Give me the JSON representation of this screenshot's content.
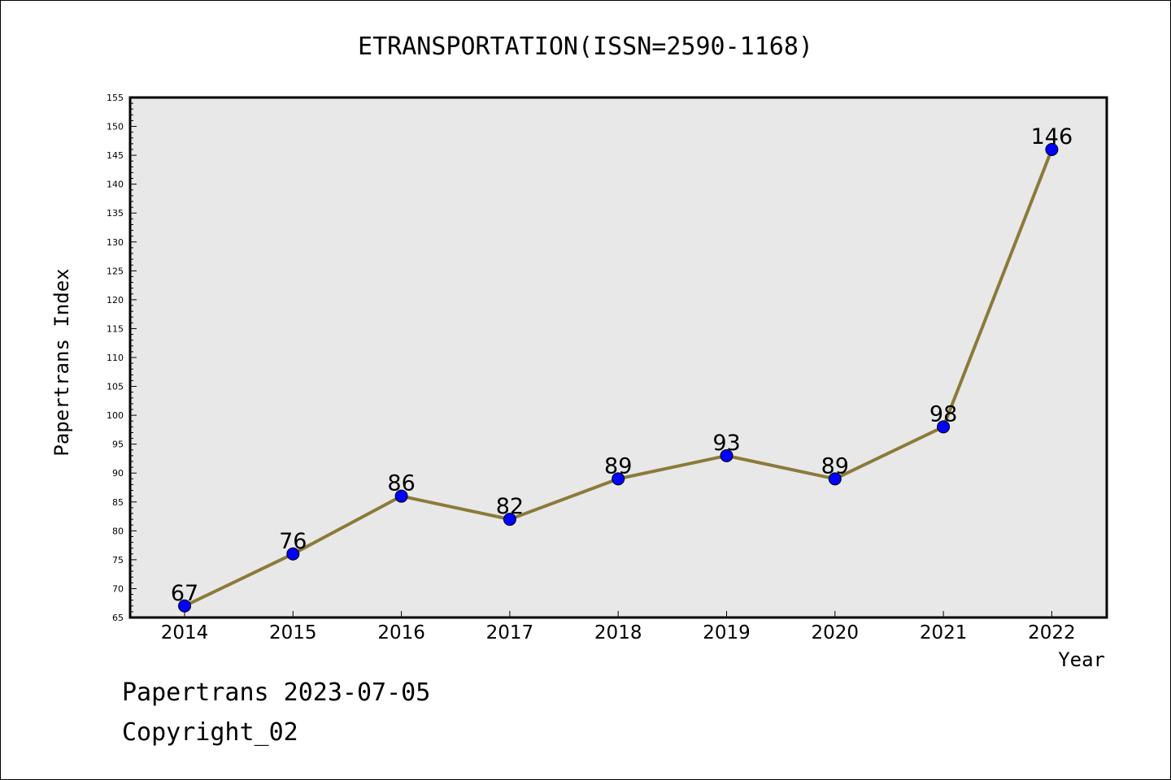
{
  "chart_data": {
    "type": "line",
    "title": "ETRANSPORTATION(ISSN=2590-1168)",
    "xlabel": "Year",
    "ylabel": "Papertrans Index",
    "categories": [
      "2014",
      "2015",
      "2016",
      "2017",
      "2018",
      "2019",
      "2020",
      "2021",
      "2022"
    ],
    "series": [
      {
        "values": [
          67,
          76,
          86,
          82,
          89,
          93,
          89,
          98,
          146
        ]
      }
    ],
    "data_labels": [
      "67",
      "76",
      "86",
      "82",
      "89",
      "93",
      "89",
      "98",
      "146"
    ],
    "ylim": [
      65,
      155
    ],
    "y_ticks": [
      "65",
      "70",
      "75",
      "80",
      "85",
      "90",
      "95",
      "100",
      "105",
      "110",
      "115",
      "120",
      "125",
      "130",
      "135",
      "140",
      "145",
      "150",
      "155"
    ],
    "grid": false,
    "colors": {
      "line": "#8b7a3a",
      "marker": "#0000ff",
      "plot_bg": "#e8e8e8"
    }
  },
  "footer": {
    "line1": "Papertrans 2023-07-05",
    "line2": "Copyright_02"
  }
}
